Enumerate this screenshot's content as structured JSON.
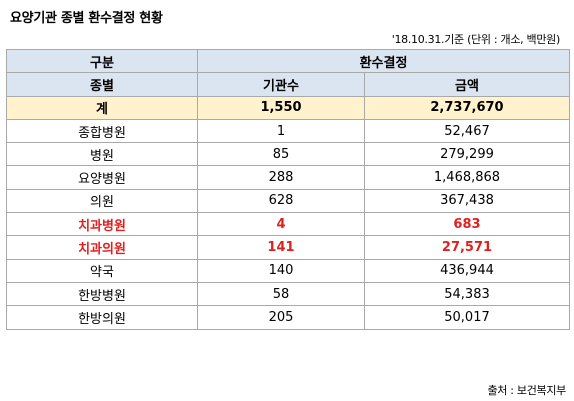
{
  "title": "요양기관 종별 환수결정 현황",
  "note": "'18.10.31.기준 (단위 : 개소, 백만원)",
  "header": {
    "row1": {
      "col1": "구분",
      "group": "환수결정"
    },
    "row2": {
      "col1": "종별",
      "col2": "기관수",
      "col3": "금액"
    }
  },
  "total": {
    "label": "계",
    "count": "1,550",
    "amount": "2,737,670"
  },
  "rows": [
    {
      "label": "종합병원",
      "count": "1",
      "amount": "52,467",
      "highlight": false
    },
    {
      "label": "병원",
      "count": "85",
      "amount": "279,299",
      "highlight": false
    },
    {
      "label": "요양병원",
      "count": "288",
      "amount": "1,468,868",
      "highlight": false
    },
    {
      "label": "의원",
      "count": "628",
      "amount": "367,438",
      "highlight": false
    },
    {
      "label": "치과병원",
      "count": "4",
      "amount": "683",
      "highlight": true
    },
    {
      "label": "치과의원",
      "count": "141",
      "amount": "27,571",
      "highlight": true
    },
    {
      "label": "약국",
      "count": "140",
      "amount": "436,944",
      "highlight": false
    },
    {
      "label": "한방병원",
      "count": "58",
      "amount": "54,383",
      "highlight": false
    },
    {
      "label": "한방의원",
      "count": "205",
      "amount": "50,017",
      "highlight": false
    }
  ],
  "source": "출처 : 보건복지부",
  "colors": {
    "header_bg": "#dbe5f1",
    "total_bg": "#fff2cc",
    "highlight_text": "#e02020"
  }
}
